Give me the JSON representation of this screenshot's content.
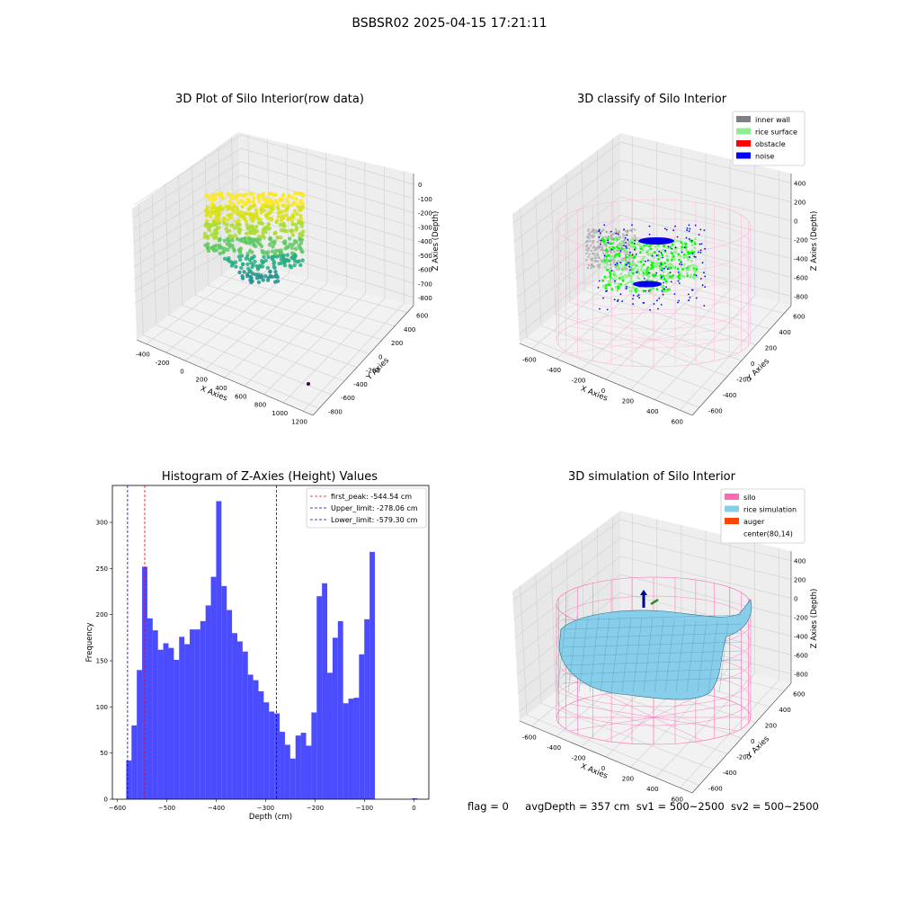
{
  "figure": {
    "suptitle": "BSBSR02 2025-04-15 17:21:11",
    "footer": {
      "flag": "flag = 0",
      "avg_depth": "avgDepth = 357 cm",
      "sv1": "sv1 = 500~2500",
      "sv2": "sv2 = 500~2500"
    }
  },
  "chart_data": [
    {
      "type": "scatter",
      "title": "3D Plot of Silo Interior(row data)",
      "xlabel": "X Axies",
      "ylabel": "Y Axies",
      "zlabel": "Z Axies (Depth)",
      "x_ticks": [
        -400,
        -200,
        0,
        200,
        400,
        600,
        800,
        1000,
        1200
      ],
      "y_ticks": [
        -800,
        -600,
        -400,
        -200,
        0,
        200,
        400,
        600
      ],
      "z_ticks": [
        -800,
        -700,
        -600,
        -500,
        -400,
        -300,
        -200,
        -100,
        0
      ],
      "colormap": "viridis",
      "outlier_point": {
        "x": 1180,
        "y": -780,
        "z": -860
      },
      "grid": true
    },
    {
      "type": "scatter",
      "title": "3D classify of Silo Interior",
      "xlabel": "X Axies",
      "ylabel": "Y Axies",
      "zlabel": "Z Axies (Depth)",
      "x_ticks": [
        -600,
        -400,
        -200,
        0,
        200,
        400,
        600
      ],
      "y_ticks": [
        -600,
        -400,
        -200,
        0,
        200,
        400,
        600
      ],
      "z_ticks": [
        -800,
        -600,
        -400,
        -200,
        0,
        200,
        400
      ],
      "legend": [
        {
          "label": "inner wall",
          "color": "#808080"
        },
        {
          "label": "rice surface",
          "color": "#90ee90"
        },
        {
          "label": "obstacle",
          "color": "#ff0000"
        },
        {
          "label": "noise",
          "color": "#0000ff"
        }
      ],
      "legend_position": "top-right",
      "grid": true
    },
    {
      "type": "bar",
      "title": "Histogram of Z-Axies (Height) Values",
      "xlabel": "Depth (cm)",
      "ylabel": "Frequency",
      "xlim": [
        -610,
        30
      ],
      "ylim": [
        0,
        340
      ],
      "x_ticks": [
        -600,
        -500,
        -400,
        -300,
        -200,
        -100,
        0
      ],
      "y_ticks": [
        0,
        50,
        100,
        150,
        200,
        250,
        300
      ],
      "bin_edges_start": -582,
      "bin_width": 10.7,
      "bar_color": "#0000ff",
      "values": [
        42,
        80,
        140,
        252,
        196,
        183,
        162,
        169,
        164,
        151,
        176,
        168,
        184,
        184,
        193,
        210,
        241,
        323,
        231,
        205,
        180,
        171,
        160,
        135,
        129,
        117,
        105,
        95,
        93,
        73,
        59,
        44,
        69,
        72,
        58,
        94,
        220,
        234,
        137,
        175,
        193,
        104,
        109,
        110,
        157,
        195,
        268
      ],
      "extra_bars": [
        {
          "x": -4,
          "width": 10.7,
          "value": 1
        }
      ],
      "vlines": [
        {
          "x": -544.54,
          "color": "#ff0000",
          "label": "first_peak: -544.54 cm"
        },
        {
          "x": -278.06,
          "color": "#0000cc",
          "label": "Upper_limit: -278.06 cm"
        },
        {
          "x": -579.3,
          "color": "#0000cc",
          "label": "Lower_limit: -579.30 cm"
        }
      ],
      "legend_position": "top-right"
    },
    {
      "type": "area",
      "title": "3D simulation of Silo Interior",
      "xlabel": "X Axies",
      "ylabel": "Y Axies",
      "zlabel": "Z Axies (Depth)",
      "x_ticks": [
        -600,
        -400,
        -200,
        0,
        200,
        400,
        600
      ],
      "y_ticks": [
        -600,
        -400,
        -200,
        0,
        200,
        400,
        600
      ],
      "z_ticks": [
        -800,
        -600,
        -400,
        -200,
        0,
        200,
        400
      ],
      "legend": [
        {
          "label": "silo",
          "color": "#ff69b4"
        },
        {
          "label": "rice simulation",
          "color": "#87ceeb"
        },
        {
          "label": "auger",
          "color": "#ff4500"
        },
        {
          "label": "center(80,14)",
          "color": ""
        }
      ],
      "legend_position": "top-right",
      "grid": true
    }
  ]
}
